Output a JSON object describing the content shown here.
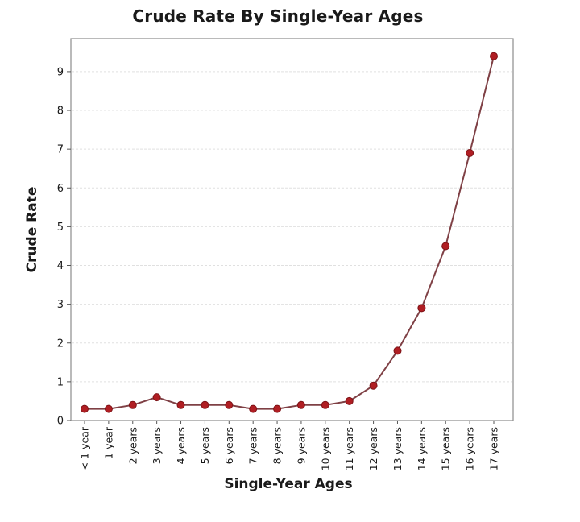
{
  "chart_data": {
    "type": "line",
    "title": "Crude Rate By Single-Year Ages",
    "xlabel": "Single-Year Ages",
    "ylabel": "Crude Rate",
    "categories": [
      "< 1 year",
      "1 year",
      "2 years",
      "3 years",
      "4 years",
      "5 years",
      "6 years",
      "7 years",
      "8 years",
      "9 years",
      "10 years",
      "11 years",
      "12 years",
      "13 years",
      "14 years",
      "15 years",
      "16 years",
      "17 years"
    ],
    "values": [
      0.3,
      0.3,
      0.4,
      0.6,
      0.4,
      0.4,
      0.4,
      0.3,
      0.3,
      0.4,
      0.4,
      0.5,
      0.9,
      1.8,
      2.9,
      4.5,
      6.9,
      9.4
    ],
    "yticks": [
      0,
      1,
      2,
      3,
      4,
      5,
      6,
      7,
      8,
      9
    ],
    "ylim": [
      0,
      9.85
    ],
    "grid": "horizontal-dashed",
    "legend": "none",
    "colors": {
      "line": "#7f4045",
      "marker_fill": "#b01e23",
      "marker_stroke": "#7c1216",
      "frame": "#8c8c8c",
      "gridline": "#e0e0e0",
      "tick": "#555555",
      "text": "#1a1a1a"
    }
  }
}
